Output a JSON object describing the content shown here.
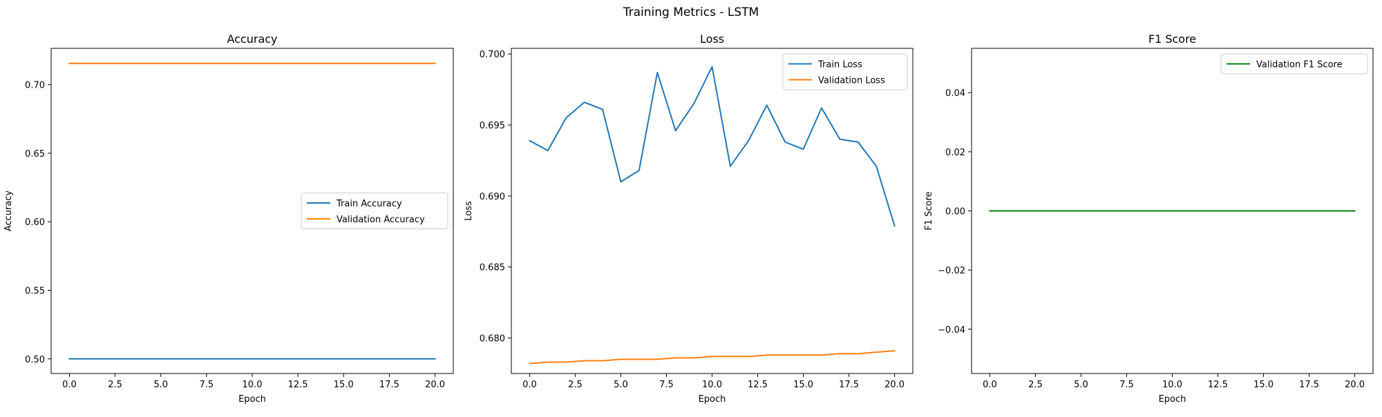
{
  "figure": {
    "suptitle": "Training Metrics - LSTM"
  },
  "chart_data": [
    {
      "type": "line",
      "title": "Accuracy",
      "xlabel": "Epoch",
      "ylabel": "Accuracy",
      "xlim": [
        -1,
        21
      ],
      "ylim": [
        0.4893,
        0.7265
      ],
      "xticks": [
        0.0,
        2.5,
        5.0,
        7.5,
        10.0,
        12.5,
        15.0,
        17.5,
        20.0
      ],
      "xtick_labels": [
        "0.0",
        "2.5",
        "5.0",
        "7.5",
        "10.0",
        "12.5",
        "15.0",
        "17.5",
        "20.0"
      ],
      "yticks": [
        0.5,
        0.55,
        0.6,
        0.65,
        0.7
      ],
      "ytick_labels": [
        "0.50",
        "0.55",
        "0.60",
        "0.65",
        "0.70"
      ],
      "legend": "center-right",
      "grid": false,
      "x": [
        0,
        1,
        2,
        3,
        4,
        5,
        6,
        7,
        8,
        9,
        10,
        11,
        12,
        13,
        14,
        15,
        16,
        17,
        18,
        19,
        20
      ],
      "series": [
        {
          "name": "Train Accuracy",
          "color": "#1f77b4",
          "values": [
            0.5,
            0.5,
            0.5,
            0.5,
            0.5,
            0.5,
            0.5,
            0.5,
            0.5,
            0.5,
            0.5,
            0.5,
            0.5,
            0.5,
            0.5,
            0.5,
            0.5,
            0.5,
            0.5,
            0.5,
            0.5
          ]
        },
        {
          "name": "Validation Accuracy",
          "color": "#ff7f0e",
          "values": [
            0.7155,
            0.7155,
            0.7155,
            0.7155,
            0.7155,
            0.7155,
            0.7155,
            0.7155,
            0.7155,
            0.7155,
            0.7155,
            0.7155,
            0.7155,
            0.7155,
            0.7155,
            0.7155,
            0.7155,
            0.7155,
            0.7155,
            0.7155,
            0.7155
          ]
        }
      ]
    },
    {
      "type": "line",
      "title": "Loss",
      "xlabel": "Epoch",
      "ylabel": "Loss",
      "xlim": [
        -1,
        21
      ],
      "ylim": [
        0.6775,
        0.7004
      ],
      "xticks": [
        0.0,
        2.5,
        5.0,
        7.5,
        10.0,
        12.5,
        15.0,
        17.5,
        20.0
      ],
      "xtick_labels": [
        "0.0",
        "2.5",
        "5.0",
        "7.5",
        "10.0",
        "12.5",
        "15.0",
        "17.5",
        "20.0"
      ],
      "yticks": [
        0.68,
        0.685,
        0.69,
        0.695,
        0.7
      ],
      "ytick_labels": [
        "0.680",
        "0.685",
        "0.690",
        "0.695",
        "0.700"
      ],
      "legend": "top-right",
      "grid": false,
      "x": [
        0,
        1,
        2,
        3,
        4,
        5,
        6,
        7,
        8,
        9,
        10,
        11,
        12,
        13,
        14,
        15,
        16,
        17,
        18,
        19,
        20
      ],
      "series": [
        {
          "name": "Train Loss",
          "color": "#1f77b4",
          "values": [
            0.6939,
            0.6932,
            0.6955,
            0.6966,
            0.6961,
            0.691,
            0.6918,
            0.6987,
            0.6946,
            0.6965,
            0.6991,
            0.6921,
            0.6939,
            0.6964,
            0.6938,
            0.6933,
            0.6962,
            0.694,
            0.6938,
            0.6921,
            0.6879
          ]
        },
        {
          "name": "Validation Loss",
          "color": "#ff7f0e",
          "values": [
            0.6782,
            0.6783,
            0.6783,
            0.6784,
            0.6784,
            0.6785,
            0.6785,
            0.6785,
            0.6786,
            0.6786,
            0.6787,
            0.6787,
            0.6787,
            0.6788,
            0.6788,
            0.6788,
            0.6788,
            0.6789,
            0.6789,
            0.679,
            0.6791
          ]
        }
      ]
    },
    {
      "type": "line",
      "title": "F1 Score",
      "xlabel": "Epoch",
      "ylabel": "F1 Score",
      "xlim": [
        -1,
        21
      ],
      "ylim": [
        -0.055,
        0.055
      ],
      "xticks": [
        0.0,
        2.5,
        5.0,
        7.5,
        10.0,
        12.5,
        15.0,
        17.5,
        20.0
      ],
      "xtick_labels": [
        "0.0",
        "2.5",
        "5.0",
        "7.5",
        "10.0",
        "12.5",
        "15.0",
        "17.5",
        "20.0"
      ],
      "yticks": [
        -0.04,
        -0.02,
        0.0,
        0.02,
        0.04
      ],
      "ytick_labels": [
        "−0.04",
        "−0.02",
        "0.00",
        "0.02",
        "0.04"
      ],
      "legend": "top-right",
      "grid": false,
      "x": [
        0,
        1,
        2,
        3,
        4,
        5,
        6,
        7,
        8,
        9,
        10,
        11,
        12,
        13,
        14,
        15,
        16,
        17,
        18,
        19,
        20
      ],
      "series": [
        {
          "name": "Validation F1 Score",
          "color": "#008000",
          "values": [
            0,
            0,
            0,
            0,
            0,
            0,
            0,
            0,
            0,
            0,
            0,
            0,
            0,
            0,
            0,
            0,
            0,
            0,
            0,
            0,
            0
          ]
        }
      ]
    }
  ]
}
